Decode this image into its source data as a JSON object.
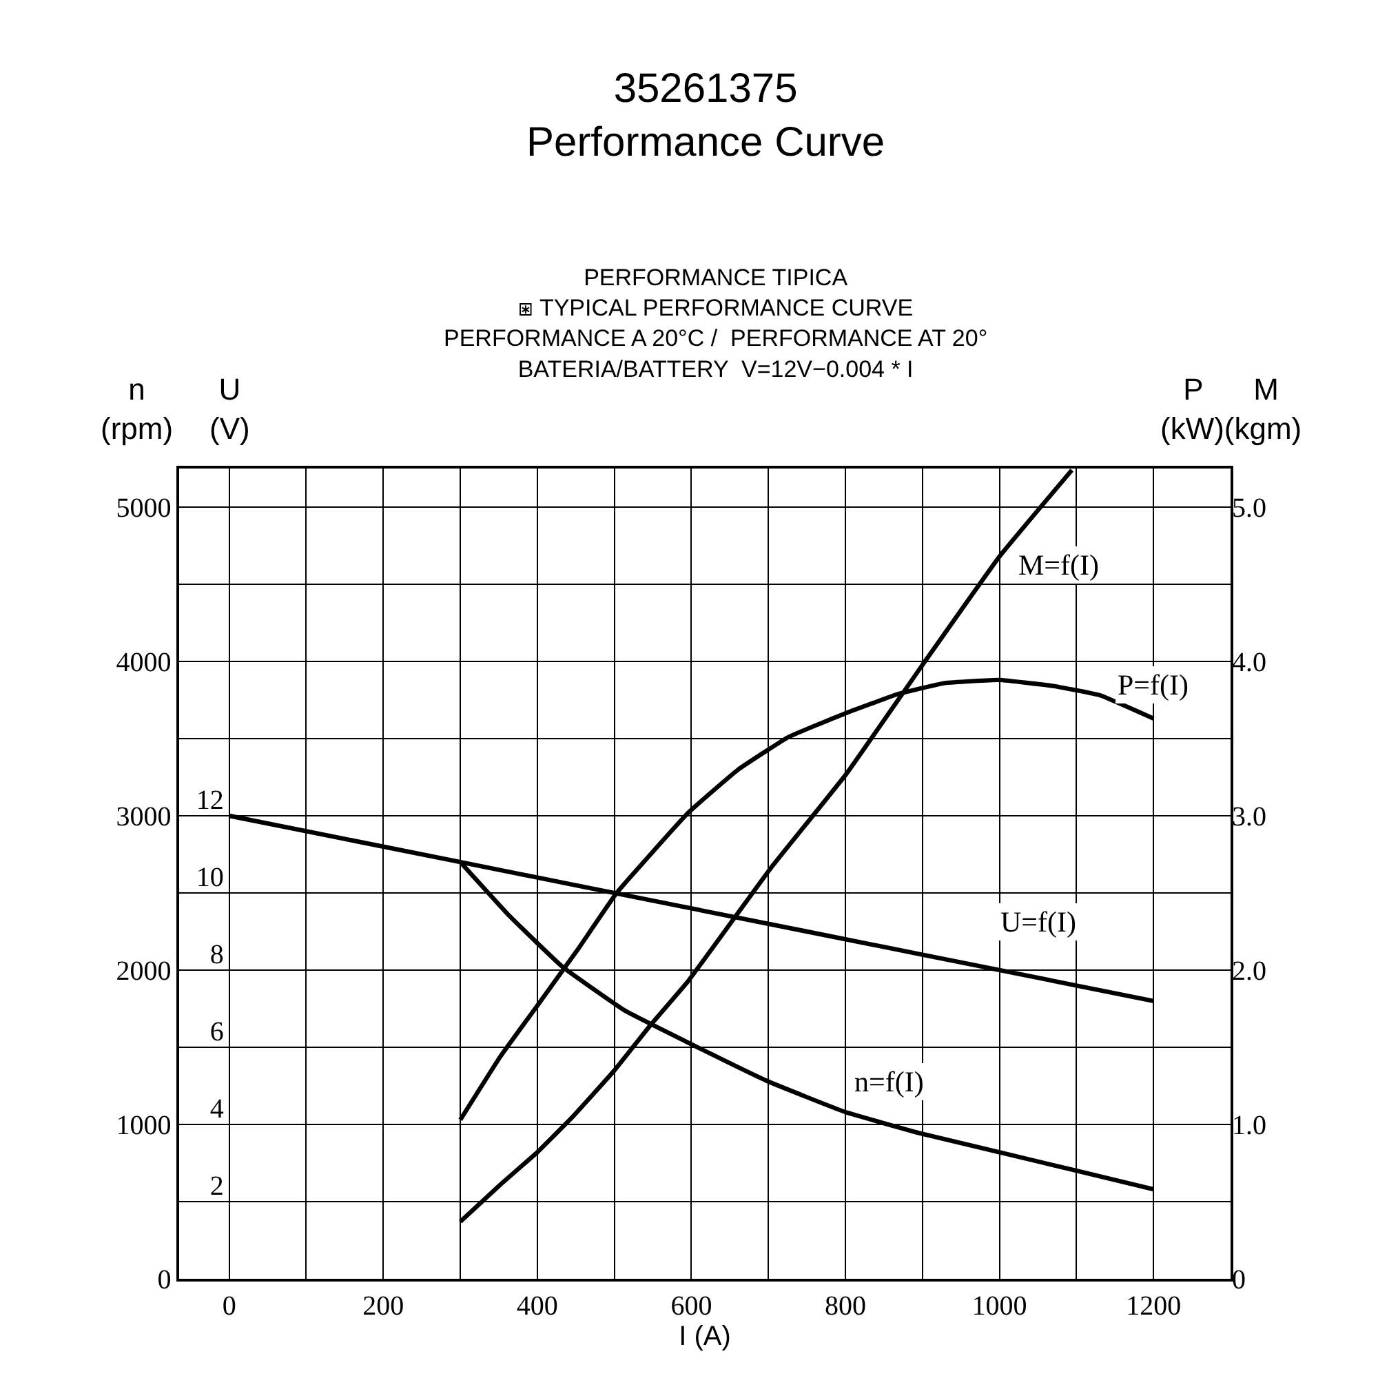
{
  "chart_data": {
    "type": "line",
    "title": "35261375\nPerformance Curve",
    "subtitle": "PERFORMANCE TIPICA\n⧆ TYPICAL PERFORMANCE CURVE\nPERFORMANCE A 20°C /  PERFORMANCE AT 20°\nBATERIA/BATTERY  V=12V−0.004 * I",
    "xlabel": "I (A)",
    "ylabel": "n\n(rpm)",
    "y2label": "U\n(V)",
    "y3label": "P      M\n(kW)(kgm)",
    "xlim": [
      -65,
      1300
    ],
    "xticks": [
      0,
      {
        "value": 100,
        "label": null
      },
      200,
      {
        "value": 300,
        "label": null
      },
      400,
      {
        "value": 500,
        "label": null
      },
      600,
      {
        "value": 700,
        "label": null
      },
      800,
      {
        "value": 900,
        "label": null
      },
      1000,
      {
        "value": 1100,
        "label": null
      },
      1200
    ],
    "ylim": [
      0,
      5250
    ],
    "yticks": [
      0,
      {
        "value": 500,
        "label": null
      },
      1000,
      {
        "value": 1500,
        "label": null
      },
      2000,
      {
        "value": 2500,
        "label": null
      },
      3000,
      {
        "value": 3500,
        "label": null
      },
      4000,
      {
        "value": 4500,
        "label": null
      },
      5000
    ],
    "y2lim": [
      0,
      21
    ],
    "y2ticks": [
      2,
      4,
      6,
      8,
      10,
      12
    ],
    "y3lim": [
      0,
      5.25
    ],
    "y3ticks": [
      0,
      {
        "value": 1,
        "label": "1.0"
      },
      {
        "value": 2,
        "label": "2.0"
      },
      {
        "value": 3,
        "label": "3.0"
      },
      {
        "value": 4,
        "label": "4.0"
      },
      {
        "value": 5,
        "label": "5.0"
      }
    ],
    "grid": true,
    "legend": false,
    "marker": "none",
    "line_style": "solid",
    "series": [
      {
        "name": "M=f(I)",
        "color": "#000000",
        "axis": "y3",
        "x": [
          300,
          352,
          400,
          446,
          500,
          548,
          596,
          703,
          801,
          899,
          1000,
          1094
        ],
        "values": [
          0.37,
          0.61,
          0.82,
          1.05,
          1.35,
          1.65,
          1.93,
          2.66,
          3.27,
          3.97,
          4.68,
          5.24
        ]
      },
      {
        "name": "P=f(I)",
        "color": "#000000",
        "axis": "y3",
        "x": [
          300,
          352,
          400,
          452,
          503,
          596,
          661,
          726,
          798,
          869,
          929,
          1000,
          1071,
          1131,
          1200
        ],
        "values": [
          1.03,
          1.44,
          1.77,
          2.13,
          2.5,
          3.02,
          3.3,
          3.51,
          3.66,
          3.79,
          3.86,
          3.88,
          3.84,
          3.78,
          3.63
        ]
      },
      {
        "name": "U=f(I)",
        "color": "#000000",
        "axis": "y2",
        "x": [
          0,
          300,
          600,
          900,
          1200
        ],
        "values": [
          12,
          10.8,
          9.6,
          8.4,
          7.2
        ]
      },
      {
        "name": "n=f(I)",
        "color": "#000000",
        "x": [
          300,
          364,
          433,
          513,
          596,
          699,
          800,
          899,
          1000,
          1100,
          1200
        ],
        "values": [
          2700,
          2350,
          2020,
          1740,
          1530,
          1280,
          1080,
          940,
          820,
          700,
          580
        ]
      }
    ]
  }
}
